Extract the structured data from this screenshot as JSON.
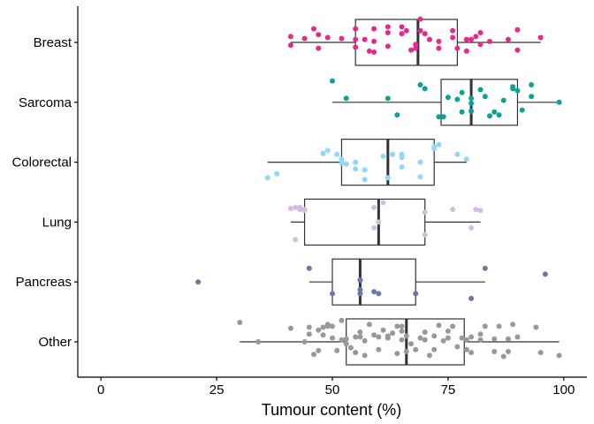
{
  "chart_data": {
    "type": "boxplot",
    "orientation": "horizontal",
    "xlabel": "Tumour content (%)",
    "ylabel": "",
    "xlim": [
      -5,
      105
    ],
    "xticks": [
      0,
      25,
      50,
      75,
      100
    ],
    "grid": false,
    "legend": "none",
    "categories": [
      "Breast",
      "Sarcoma",
      "Colorectal",
      "Lung",
      "Pancreas",
      "Other"
    ],
    "series": [
      {
        "name": "Breast",
        "color": "#e7298a",
        "whisker_low": 41,
        "q1": 55,
        "median": 68.5,
        "q3": 77,
        "whisker_high": 95,
        "points": [
          [
            41,
            -0.03
          ],
          [
            41,
            0.06
          ],
          [
            44,
            0.04
          ],
          [
            46,
            0.14
          ],
          [
            47,
            0.08
          ],
          [
            47,
            -0.06
          ],
          [
            49,
            0.05
          ],
          [
            52,
            0.04
          ],
          [
            55,
            0.03
          ],
          [
            55,
            0.14
          ],
          [
            55,
            -0.05
          ],
          [
            57,
            0.03
          ],
          [
            58,
            -0.09
          ],
          [
            59,
            -0.1
          ],
          [
            59,
            0.01
          ],
          [
            59,
            0.14
          ],
          [
            62,
            0.16
          ],
          [
            62,
            0.1
          ],
          [
            62,
            -0.04
          ],
          [
            65,
            0.09
          ],
          [
            65,
            0.16
          ],
          [
            66,
            0.12
          ],
          [
            67,
            -0.08
          ],
          [
            68,
            -0.06
          ],
          [
            68,
            -0.02
          ],
          [
            69,
            0.12
          ],
          [
            69,
            0.24
          ],
          [
            70,
            0.09
          ],
          [
            71,
            0.03
          ],
          [
            73,
            0.01
          ],
          [
            73,
            -0.06
          ],
          [
            76,
            0.05
          ],
          [
            76,
            0.12
          ],
          [
            77,
            -0.06
          ],
          [
            79,
            0.03
          ],
          [
            79,
            -0.09
          ],
          [
            80,
            0.03
          ],
          [
            81,
            0.06
          ],
          [
            82,
            0.1
          ],
          [
            82,
            -0.02
          ],
          [
            84,
            0.01
          ],
          [
            88,
            0.03
          ],
          [
            90,
            0.13
          ],
          [
            90,
            -0.08
          ],
          [
            95,
            0.05
          ]
        ]
      },
      {
        "name": "Sarcoma",
        "color": "#0aa394",
        "whisker_low": 50,
        "q1": 73.5,
        "median": 80,
        "q3": 90,
        "whisker_high": 99,
        "points": [
          [
            50,
            0.22
          ],
          [
            53,
            0.04
          ],
          [
            62,
            0.04
          ],
          [
            64,
            -0.13
          ],
          [
            69,
            0.18
          ],
          [
            70,
            0.14
          ],
          [
            73,
            -0.15
          ],
          [
            74,
            -0.15
          ],
          [
            75,
            0.05
          ],
          [
            77,
            0.03
          ],
          [
            78,
            0.1
          ],
          [
            78,
            -0.1
          ],
          [
            80,
            0.04
          ],
          [
            80,
            -0.01
          ],
          [
            80,
            -0.09
          ],
          [
            82,
            0.13
          ],
          [
            83,
            0.06
          ],
          [
            84,
            -0.14
          ],
          [
            85,
            -0.1
          ],
          [
            86,
            -0.13
          ],
          [
            87,
            0.02
          ],
          [
            89,
            0.16
          ],
          [
            89,
            0.14
          ],
          [
            90,
            0.12
          ],
          [
            91,
            -0.08
          ],
          [
            93,
            0.18
          ],
          [
            93,
            0.06
          ],
          [
            99,
            0
          ]
        ]
      },
      {
        "name": "Colorectal",
        "color": "#8fd8f8",
        "whisker_low": 36,
        "q1": 52,
        "median": 62,
        "q3": 72,
        "whisker_high": 79,
        "points": [
          [
            36,
            -0.16
          ],
          [
            38,
            -0.12
          ],
          [
            48,
            0.09
          ],
          [
            49,
            0.12
          ],
          [
            51,
            0.08
          ],
          [
            52,
            0.03
          ],
          [
            52,
            -0.01
          ],
          [
            53,
            -0.02
          ],
          [
            55,
            0
          ],
          [
            55,
            -0.07
          ],
          [
            57,
            -0.08
          ],
          [
            57,
            -0.18
          ],
          [
            61,
            0.06
          ],
          [
            62,
            -0.16
          ],
          [
            63,
            0.08
          ],
          [
            65,
            -0.05
          ],
          [
            65,
            0.05
          ],
          [
            65,
            0.08
          ],
          [
            69,
            -0.15
          ],
          [
            69,
            0
          ],
          [
            72,
            0.16
          ],
          [
            72,
            0.14
          ],
          [
            73,
            0.18
          ],
          [
            77,
            0.08
          ],
          [
            79,
            0.03
          ]
        ]
      },
      {
        "name": "Lung",
        "color": "#d4bce0",
        "whisker_low": 41,
        "q1": 44,
        "median": 60,
        "q3": 70,
        "whisker_high": 82,
        "points": [
          [
            41,
            0.14
          ],
          [
            42,
            0.15
          ],
          [
            42,
            -0.18
          ],
          [
            43,
            0.15
          ],
          [
            43,
            0.13
          ],
          [
            44,
            0.13
          ],
          [
            44,
            0.12
          ],
          [
            59,
            -0.06
          ],
          [
            59,
            0.15
          ],
          [
            60,
            0
          ],
          [
            61,
            0.2
          ],
          [
            70,
            -0.13
          ],
          [
            70,
            0.1
          ],
          [
            76,
            0.13
          ],
          [
            80,
            -0.06
          ],
          [
            81,
            0.13
          ],
          [
            82,
            0.12
          ]
        ]
      },
      {
        "name": "Pancreas",
        "color": "#6b77a8",
        "whisker_low": 45,
        "q1": 50,
        "median": 56,
        "q3": 68,
        "whisker_high": 83,
        "points": [
          [
            21,
            0
          ],
          [
            45,
            0.14
          ],
          [
            50,
            -0.12
          ],
          [
            56,
            -0.12
          ],
          [
            56,
            -0.08
          ],
          [
            56,
            0.02
          ],
          [
            56,
            0.02
          ],
          [
            59,
            -0.1
          ],
          [
            60,
            -0.12
          ],
          [
            68,
            -0.12
          ],
          [
            80,
            -0.17
          ],
          [
            83,
            0.14
          ],
          [
            96,
            0.08
          ]
        ]
      },
      {
        "name": "Other",
        "color": "#999999",
        "whisker_low": 30,
        "q1": 53,
        "median": 66,
        "q3": 78.5,
        "whisker_high": 99,
        "points": [
          [
            30,
            0.2
          ],
          [
            34,
            0
          ],
          [
            41,
            0.14
          ],
          [
            44,
            0
          ],
          [
            45,
            0.15
          ],
          [
            45,
            0.08
          ],
          [
            46,
            -0.13
          ],
          [
            47,
            -0.09
          ],
          [
            47,
            0.12
          ],
          [
            48,
            0.07
          ],
          [
            48,
            0.15
          ],
          [
            49,
            0.18
          ],
          [
            49,
            0.16
          ],
          [
            50,
            0.16
          ],
          [
            50,
            0.04
          ],
          [
            51,
            -0.09
          ],
          [
            52,
            0.22
          ],
          [
            52,
            0.02
          ],
          [
            53,
            -0.02
          ],
          [
            53,
            0.03
          ],
          [
            54,
            -0.06
          ],
          [
            55,
            0.05
          ],
          [
            55,
            -0.11
          ],
          [
            56,
            0.1
          ],
          [
            56,
            0.05
          ],
          [
            57,
            0.01
          ],
          [
            57,
            -0.14
          ],
          [
            58,
            0.18
          ],
          [
            59,
            0.07
          ],
          [
            60,
            0.05
          ],
          [
            60,
            -0.08
          ],
          [
            61,
            0.12
          ],
          [
            62,
            0.04
          ],
          [
            62,
            0.06
          ],
          [
            63,
            0.09
          ],
          [
            64,
            0.16
          ],
          [
            64,
            -0.12
          ],
          [
            65,
            0.16
          ],
          [
            65,
            0.11
          ],
          [
            65,
            0.02
          ],
          [
            66,
            0.06
          ],
          [
            66,
            -0.1
          ],
          [
            67,
            -0.02
          ],
          [
            68,
            -0.08
          ],
          [
            69,
            0.04
          ],
          [
            70,
            0.1
          ],
          [
            70,
            0.02
          ],
          [
            71,
            -0.14
          ],
          [
            72,
            0.06
          ],
          [
            72,
            -0.08
          ],
          [
            73,
            0.17
          ],
          [
            74,
            0.01
          ],
          [
            75,
            0.11
          ],
          [
            75,
            0.04
          ],
          [
            76,
            0.16
          ],
          [
            77,
            -0.05
          ],
          [
            78,
            0.04
          ],
          [
            79,
            0.02
          ],
          [
            79,
            -0.08
          ],
          [
            80,
            0.05
          ],
          [
            80,
            -0.11
          ],
          [
            82,
            0.08
          ],
          [
            82,
            0.02
          ],
          [
            83,
            0.16
          ],
          [
            85,
            0.03
          ],
          [
            85,
            -0.1
          ],
          [
            86,
            0.16
          ],
          [
            87,
            -0.15
          ],
          [
            88,
            0.03
          ],
          [
            88,
            -0.1
          ],
          [
            89,
            0.18
          ],
          [
            90,
            0.05
          ],
          [
            94,
            0.15
          ],
          [
            95,
            -0.11
          ],
          [
            99,
            -0.14
          ]
        ]
      }
    ]
  }
}
